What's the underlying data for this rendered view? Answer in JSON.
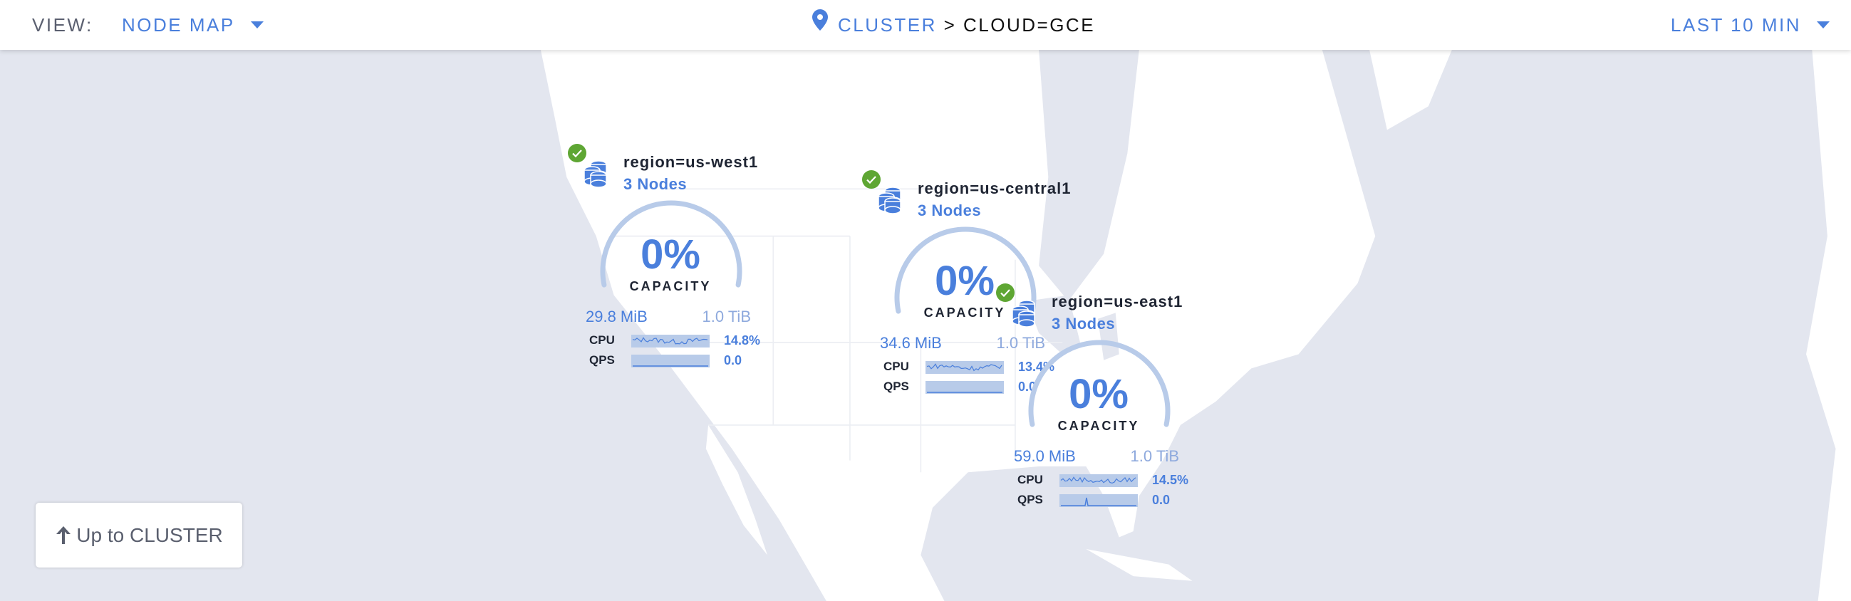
{
  "header": {
    "view_label": "VIEW:",
    "view_value": "NODE MAP",
    "breadcrumb": {
      "root": "CLUSTER",
      "separator": ">",
      "current": "CLOUD=GCE"
    },
    "time_range": "LAST 10 MIN"
  },
  "colors": {
    "accent": "#4a7fdc",
    "healthy": "#5ea633",
    "gauge_track": "#b8cbe9",
    "ocean": "#e3e6ef",
    "land": "#ffffff"
  },
  "regions": [
    {
      "name": "region=us-west1",
      "nodes": "3 Nodes",
      "status": "healthy",
      "capacity_pct": "0%",
      "capacity_label": "CAPACITY",
      "used": "29.8 MiB",
      "total": "1.0 TiB",
      "cpu_label": "CPU",
      "cpu": "14.8%",
      "qps_label": "QPS",
      "qps": "0.0"
    },
    {
      "name": "region=us-central1",
      "nodes": "3 Nodes",
      "status": "healthy",
      "capacity_pct": "0%",
      "capacity_label": "CAPACITY",
      "used": "34.6 MiB",
      "total": "1.0 TiB",
      "cpu_label": "CPU",
      "cpu": "13.4%",
      "qps_label": "QPS",
      "qps": "0.0"
    },
    {
      "name": "region=us-east1",
      "nodes": "3 Nodes",
      "status": "healthy",
      "capacity_pct": "0%",
      "capacity_label": "CAPACITY",
      "used": "59.0 MiB",
      "total": "1.0 TiB",
      "cpu_label": "CPU",
      "cpu": "14.5%",
      "qps_label": "QPS",
      "qps": "0.0"
    }
  ],
  "up_button": {
    "icon": "arrow-up-icon",
    "label": "Up to CLUSTER"
  }
}
